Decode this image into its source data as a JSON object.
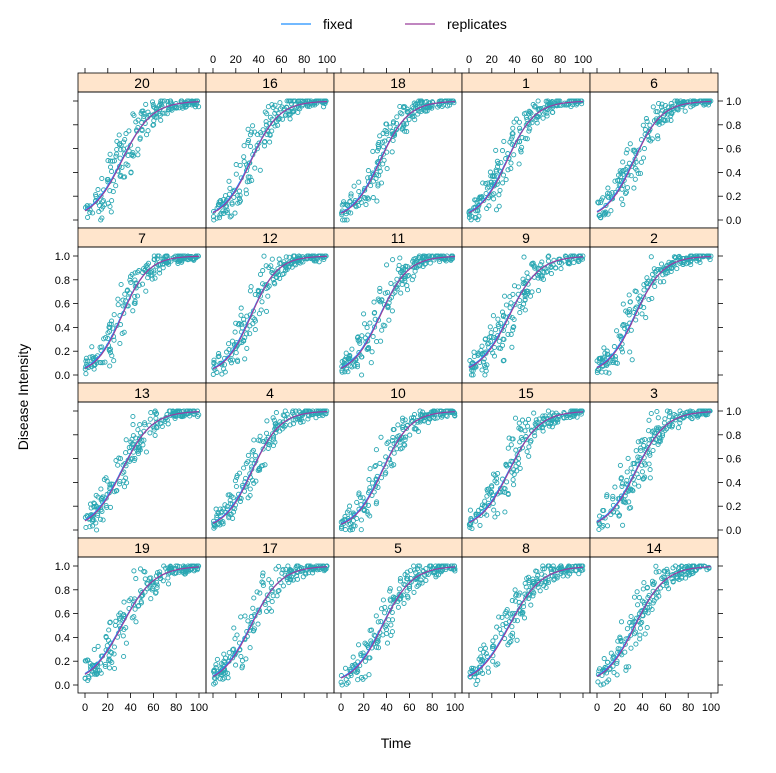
{
  "chart_data": {
    "type": "scatter",
    "layout": "lattice 5x4 panels",
    "xlabel": "Time",
    "ylabel": "Disease Intensity",
    "xlim": [
      0,
      100
    ],
    "ylim": [
      0,
      1
    ],
    "x_ticks": [
      0,
      20,
      40,
      60,
      80,
      100
    ],
    "y_ticks": [
      0.0,
      0.2,
      0.4,
      0.6,
      0.8,
      1.0
    ],
    "y_tick_labels": [
      "0.0",
      "0.2",
      "0.4",
      "0.6",
      "0.8",
      "1.0"
    ],
    "legend": {
      "position": "top",
      "entries": [
        {
          "label": "fixed",
          "color": "#1f8fff"
        },
        {
          "label": "replicates",
          "color": "#9b3f9b"
        }
      ]
    },
    "colors": {
      "points": "#2aa7b3",
      "strip_fill": "#ffe5cc"
    },
    "panels": [
      {
        "label": "20",
        "k": 0.075,
        "t50": 32
      },
      {
        "label": "16",
        "k": 0.08,
        "t50": 33
      },
      {
        "label": "18",
        "k": 0.08,
        "t50": 34
      },
      {
        "label": "1",
        "k": 0.08,
        "t50": 33
      },
      {
        "label": "6",
        "k": 0.08,
        "t50": 32
      },
      {
        "label": "7",
        "k": 0.085,
        "t50": 32
      },
      {
        "label": "12",
        "k": 0.085,
        "t50": 33
      },
      {
        "label": "11",
        "k": 0.08,
        "t50": 34
      },
      {
        "label": "9",
        "k": 0.075,
        "t50": 35
      },
      {
        "label": "2",
        "k": 0.08,
        "t50": 33
      },
      {
        "label": "13",
        "k": 0.075,
        "t50": 32
      },
      {
        "label": "4",
        "k": 0.08,
        "t50": 34
      },
      {
        "label": "10",
        "k": 0.08,
        "t50": 36
      },
      {
        "label": "15",
        "k": 0.075,
        "t50": 35
      },
      {
        "label": "3",
        "k": 0.075,
        "t50": 34
      },
      {
        "label": "19",
        "k": 0.07,
        "t50": 32
      },
      {
        "label": "17",
        "k": 0.075,
        "t50": 33
      },
      {
        "label": "5",
        "k": 0.075,
        "t50": 36
      },
      {
        "label": "8",
        "k": 0.07,
        "t50": 35
      },
      {
        "label": "14",
        "k": 0.075,
        "t50": 33
      }
    ],
    "points_per_panel": 200
  }
}
